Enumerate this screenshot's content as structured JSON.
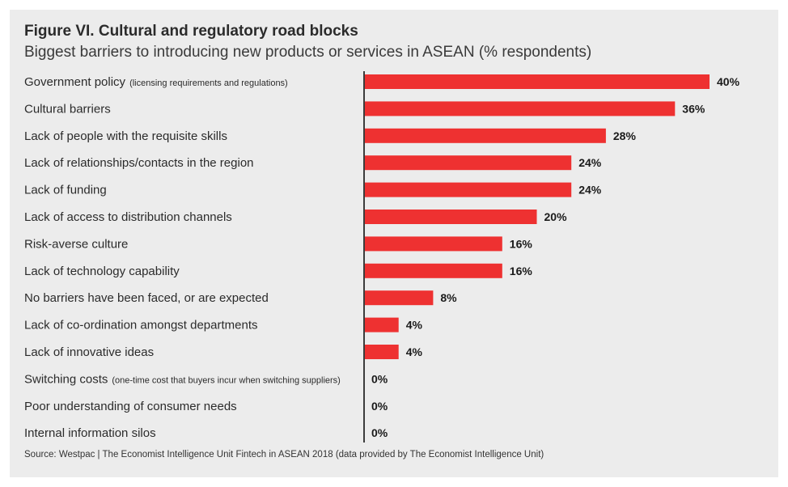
{
  "header": {
    "title": "Figure VI. Cultural and regulatory road blocks",
    "subtitle": "Biggest barriers to introducing new products or services in ASEAN (% respondents)"
  },
  "footer": {
    "source": "Source: Westpac | The Economist Intelligence Unit Fintech in ASEAN 2018 (data provided by  The Economist Intelligence Unit)"
  },
  "colors": {
    "bar": "#ee3131",
    "axis": "#3c3c3c",
    "panel": "#ececec"
  },
  "chart_data": {
    "type": "bar",
    "orientation": "horizontal",
    "title": "Figure VI. Cultural and regulatory road blocks",
    "subtitle": "Biggest barriers to introducing new products or services in ASEAN (% respondents)",
    "categories": [
      {
        "label": "Government policy",
        "note": "(licensing requirements and regulations)"
      },
      {
        "label": "Cultural barriers",
        "note": ""
      },
      {
        "label": "Lack of people with the requisite skills",
        "note": ""
      },
      {
        "label": "Lack of relationships/contacts in the region",
        "note": ""
      },
      {
        "label": "Lack of funding",
        "note": ""
      },
      {
        "label": "Lack of access to distribution channels",
        "note": ""
      },
      {
        "label": "Risk-averse culture",
        "note": ""
      },
      {
        "label": "Lack of technology capability",
        "note": ""
      },
      {
        "label": "No barriers have been faced, or are expected",
        "note": ""
      },
      {
        "label": "Lack of co-ordination amongst departments",
        "note": ""
      },
      {
        "label": "Lack of innovative ideas",
        "note": ""
      },
      {
        "label": "Switching costs",
        "note": "(one-time cost that buyers incur when switching suppliers)"
      },
      {
        "label": "Poor understanding of consumer needs",
        "note": ""
      },
      {
        "label": "Internal information silos",
        "note": ""
      }
    ],
    "values": [
      40,
      36,
      28,
      24,
      24,
      20,
      16,
      16,
      8,
      4,
      4,
      0,
      0,
      0
    ],
    "value_labels": [
      "40%",
      "36%",
      "28%",
      "24%",
      "24%",
      "20%",
      "16%",
      "16%",
      "8%",
      "4%",
      "4%",
      "0%",
      "0%",
      "0%"
    ],
    "xlabel": "",
    "ylabel": "",
    "xlim": [
      0,
      40
    ],
    "grid": false,
    "legend": "none"
  }
}
